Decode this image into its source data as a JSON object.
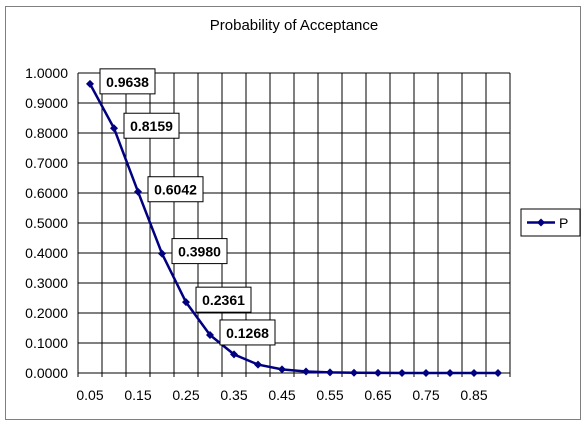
{
  "chart_data": {
    "type": "line",
    "title": "Probability of Acceptance",
    "xlabel": "",
    "ylabel": "",
    "x": [
      0.05,
      0.1,
      0.15,
      0.2,
      0.25,
      0.3,
      0.35,
      0.4,
      0.45,
      0.5,
      0.55,
      0.6,
      0.65,
      0.7,
      0.75,
      0.8,
      0.85,
      0.9
    ],
    "x_tick_labels": [
      "0.05",
      "0.15",
      "0.25",
      "0.35",
      "0.45",
      "0.55",
      "0.65",
      "0.75",
      "0.85"
    ],
    "y_tick_labels": [
      "0.0000",
      "0.1000",
      "0.2000",
      "0.3000",
      "0.4000",
      "0.5000",
      "0.6000",
      "0.7000",
      "0.8000",
      "0.9000",
      "1.0000"
    ],
    "ylim": [
      0,
      1
    ],
    "series": [
      {
        "name": "P",
        "color": "#000080",
        "marker": "diamond",
        "values": [
          0.9638,
          0.8159,
          0.6042,
          0.398,
          0.2361,
          0.1268,
          0.062,
          0.028,
          0.012,
          0.005,
          0.002,
          0.001,
          0.0004,
          0.0001,
          0.0,
          0.0,
          0.0,
          0.0
        ]
      }
    ],
    "data_labels": [
      {
        "index": 0,
        "text": "0.9638"
      },
      {
        "index": 1,
        "text": "0.8159"
      },
      {
        "index": 2,
        "text": "0.6042"
      },
      {
        "index": 3,
        "text": "0.3980"
      },
      {
        "index": 4,
        "text": "0.2361"
      },
      {
        "index": 5,
        "text": "0.1268"
      }
    ],
    "grid": true,
    "legend": "right"
  }
}
